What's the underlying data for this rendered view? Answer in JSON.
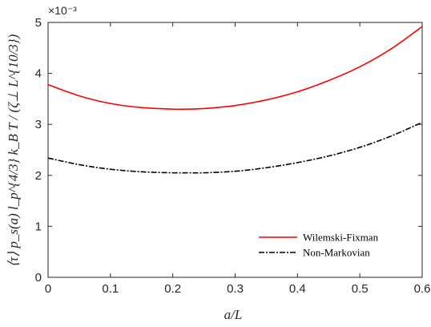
{
  "chart_data": {
    "type": "line",
    "xlabel": "a/L",
    "ylabel": "⟨τ⟩ p_s(a) l_p^{4/3} k_B T / (ζ⊥ L^{10/3})",
    "xlim": [
      0,
      0.6
    ],
    "ylim": [
      0,
      5
    ],
    "y_exponent": "×10⁻³",
    "x_ticks": [
      "0",
      "0.1",
      "0.2",
      "0.3",
      "0.4",
      "0.5",
      "0.6"
    ],
    "y_ticks": [
      "0",
      "1",
      "2",
      "3",
      "4",
      "5"
    ],
    "y_tick_values": [
      0,
      1,
      2,
      3,
      4,
      5
    ],
    "grid": false,
    "legend_position": "bottom-right",
    "x": [
      0,
      0.05,
      0.1,
      0.15,
      0.2,
      0.225,
      0.25,
      0.3,
      0.35,
      0.4,
      0.45,
      0.5,
      0.55,
      0.6
    ],
    "series": [
      {
        "name": "Wilemski-Fixman",
        "color": "#ff0000",
        "style": "solid",
        "values": [
          3.78,
          3.56,
          3.41,
          3.33,
          3.3,
          3.3,
          3.31,
          3.37,
          3.48,
          3.64,
          3.86,
          4.13,
          4.48,
          4.92
        ]
      },
      {
        "name": "Non-Markovian",
        "color": "#000000",
        "style": "dashdot",
        "values": [
          2.34,
          2.21,
          2.12,
          2.07,
          2.05,
          2.05,
          2.05,
          2.08,
          2.15,
          2.25,
          2.38,
          2.55,
          2.77,
          3.04
        ]
      }
    ]
  }
}
